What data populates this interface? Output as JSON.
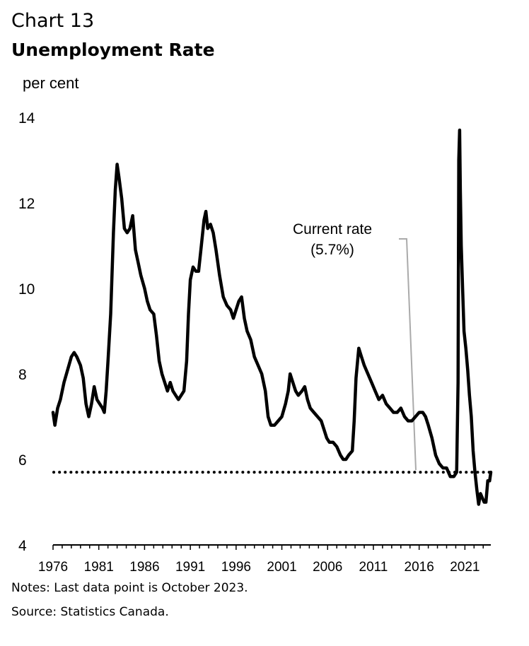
{
  "header": {
    "chart_number": "Chart 13",
    "title": "Unemployment Rate"
  },
  "footer": {
    "notes": "Notes: Last data point is October 2023.",
    "source": "Source: Statistics Canada."
  },
  "chart_data": {
    "type": "line",
    "title": "Unemployment Rate",
    "xlabel": "",
    "ylabel": "per cent",
    "xlim": [
      1976.0,
      2023.83
    ],
    "ylim": [
      4,
      14
    ],
    "yticks": [
      4,
      6,
      8,
      10,
      12,
      14
    ],
    "xticks": [
      1976,
      1981,
      1986,
      1991,
      1996,
      2001,
      2006,
      2011,
      2016,
      2021
    ],
    "series": [
      {
        "name": "Unemployment rate",
        "style": "solid",
        "color": "#000000",
        "points": [
          [
            1976.0,
            7.1
          ],
          [
            1976.2,
            6.8
          ],
          [
            1976.5,
            7.2
          ],
          [
            1976.8,
            7.4
          ],
          [
            1977.2,
            7.8
          ],
          [
            1977.6,
            8.1
          ],
          [
            1978.0,
            8.4
          ],
          [
            1978.3,
            8.5
          ],
          [
            1978.6,
            8.4
          ],
          [
            1979.0,
            8.2
          ],
          [
            1979.3,
            7.9
          ],
          [
            1979.6,
            7.3
          ],
          [
            1979.9,
            7.0
          ],
          [
            1980.2,
            7.3
          ],
          [
            1980.5,
            7.7
          ],
          [
            1980.8,
            7.4
          ],
          [
            1981.1,
            7.3
          ],
          [
            1981.4,
            7.2
          ],
          [
            1981.6,
            7.1
          ],
          [
            1981.8,
            7.6
          ],
          [
            1982.0,
            8.3
          ],
          [
            1982.3,
            9.4
          ],
          [
            1982.6,
            11.3
          ],
          [
            1982.8,
            12.3
          ],
          [
            1983.0,
            12.9
          ],
          [
            1983.2,
            12.6
          ],
          [
            1983.5,
            12.1
          ],
          [
            1983.8,
            11.4
          ],
          [
            1984.1,
            11.3
          ],
          [
            1984.4,
            11.4
          ],
          [
            1984.7,
            11.7
          ],
          [
            1985.0,
            10.9
          ],
          [
            1985.3,
            10.6
          ],
          [
            1985.6,
            10.3
          ],
          [
            1986.0,
            10.0
          ],
          [
            1986.3,
            9.7
          ],
          [
            1986.6,
            9.5
          ],
          [
            1987.0,
            9.4
          ],
          [
            1987.3,
            8.9
          ],
          [
            1987.6,
            8.3
          ],
          [
            1987.9,
            8.0
          ],
          [
            1988.2,
            7.8
          ],
          [
            1988.5,
            7.6
          ],
          [
            1988.8,
            7.8
          ],
          [
            1989.1,
            7.6
          ],
          [
            1989.4,
            7.5
          ],
          [
            1989.7,
            7.4
          ],
          [
            1990.0,
            7.5
          ],
          [
            1990.3,
            7.6
          ],
          [
            1990.6,
            8.3
          ],
          [
            1990.8,
            9.4
          ],
          [
            1991.0,
            10.2
          ],
          [
            1991.3,
            10.5
          ],
          [
            1991.6,
            10.4
          ],
          [
            1991.9,
            10.4
          ],
          [
            1992.2,
            11.0
          ],
          [
            1992.5,
            11.6
          ],
          [
            1992.7,
            11.8
          ],
          [
            1992.9,
            11.4
          ],
          [
            1993.2,
            11.5
          ],
          [
            1993.5,
            11.3
          ],
          [
            1993.8,
            10.9
          ],
          [
            1994.2,
            10.3
          ],
          [
            1994.6,
            9.8
          ],
          [
            1995.0,
            9.6
          ],
          [
            1995.4,
            9.5
          ],
          [
            1995.7,
            9.3
          ],
          [
            1996.0,
            9.5
          ],
          [
            1996.3,
            9.7
          ],
          [
            1996.6,
            9.8
          ],
          [
            1996.9,
            9.3
          ],
          [
            1997.2,
            9.0
          ],
          [
            1997.6,
            8.8
          ],
          [
            1998.0,
            8.4
          ],
          [
            1998.4,
            8.2
          ],
          [
            1998.8,
            8.0
          ],
          [
            1999.2,
            7.6
          ],
          [
            1999.5,
            7.0
          ],
          [
            1999.8,
            6.8
          ],
          [
            2000.2,
            6.8
          ],
          [
            2000.6,
            6.9
          ],
          [
            2001.0,
            7.0
          ],
          [
            2001.4,
            7.3
          ],
          [
            2001.7,
            7.6
          ],
          [
            2001.9,
            8.0
          ],
          [
            2002.2,
            7.8
          ],
          [
            2002.5,
            7.6
          ],
          [
            2002.8,
            7.5
          ],
          [
            2003.2,
            7.6
          ],
          [
            2003.5,
            7.7
          ],
          [
            2003.8,
            7.4
          ],
          [
            2004.1,
            7.2
          ],
          [
            2004.5,
            7.1
          ],
          [
            2004.9,
            7.0
          ],
          [
            2005.3,
            6.9
          ],
          [
            2005.6,
            6.7
          ],
          [
            2005.9,
            6.5
          ],
          [
            2006.2,
            6.4
          ],
          [
            2006.6,
            6.4
          ],
          [
            2007.0,
            6.3
          ],
          [
            2007.4,
            6.1
          ],
          [
            2007.7,
            6.0
          ],
          [
            2008.0,
            6.0
          ],
          [
            2008.3,
            6.1
          ],
          [
            2008.7,
            6.2
          ],
          [
            2008.9,
            6.9
          ],
          [
            2009.1,
            7.9
          ],
          [
            2009.4,
            8.6
          ],
          [
            2009.7,
            8.4
          ],
          [
            2010.0,
            8.2
          ],
          [
            2010.4,
            8.0
          ],
          [
            2010.8,
            7.8
          ],
          [
            2011.2,
            7.6
          ],
          [
            2011.6,
            7.4
          ],
          [
            2012.0,
            7.5
          ],
          [
            2012.4,
            7.3
          ],
          [
            2012.8,
            7.2
          ],
          [
            2013.2,
            7.1
          ],
          [
            2013.6,
            7.1
          ],
          [
            2014.0,
            7.2
          ],
          [
            2014.4,
            7.0
          ],
          [
            2014.8,
            6.9
          ],
          [
            2015.2,
            6.9
          ],
          [
            2015.6,
            7.0
          ],
          [
            2016.0,
            7.1
          ],
          [
            2016.4,
            7.1
          ],
          [
            2016.7,
            7.0
          ],
          [
            2017.0,
            6.8
          ],
          [
            2017.4,
            6.5
          ],
          [
            2017.8,
            6.1
          ],
          [
            2018.2,
            5.9
          ],
          [
            2018.6,
            5.8
          ],
          [
            2019.0,
            5.8
          ],
          [
            2019.4,
            5.6
          ],
          [
            2019.8,
            5.6
          ],
          [
            2020.1,
            5.7
          ],
          [
            2020.25,
            7.8
          ],
          [
            2020.33,
            13.0
          ],
          [
            2020.42,
            13.7
          ],
          [
            2020.5,
            12.3
          ],
          [
            2020.6,
            11.0
          ],
          [
            2020.75,
            10.0
          ],
          [
            2020.9,
            9.0
          ],
          [
            2021.1,
            8.6
          ],
          [
            2021.3,
            8.1
          ],
          [
            2021.5,
            7.5
          ],
          [
            2021.7,
            7.0
          ],
          [
            2021.9,
            6.2
          ],
          [
            2022.1,
            5.7
          ],
          [
            2022.3,
            5.3
          ],
          [
            2022.5,
            4.95
          ],
          [
            2022.7,
            5.2
          ],
          [
            2022.9,
            5.1
          ],
          [
            2023.1,
            5.0
          ],
          [
            2023.3,
            5.0
          ],
          [
            2023.5,
            5.5
          ],
          [
            2023.7,
            5.5
          ],
          [
            2023.83,
            5.7
          ]
        ]
      },
      {
        "name": "Current rate",
        "style": "dotted",
        "color": "#000000",
        "y": 5.7
      }
    ],
    "annotations": [
      {
        "text_line1": "Current rate",
        "text_line2": "(5.7%)"
      }
    ]
  }
}
